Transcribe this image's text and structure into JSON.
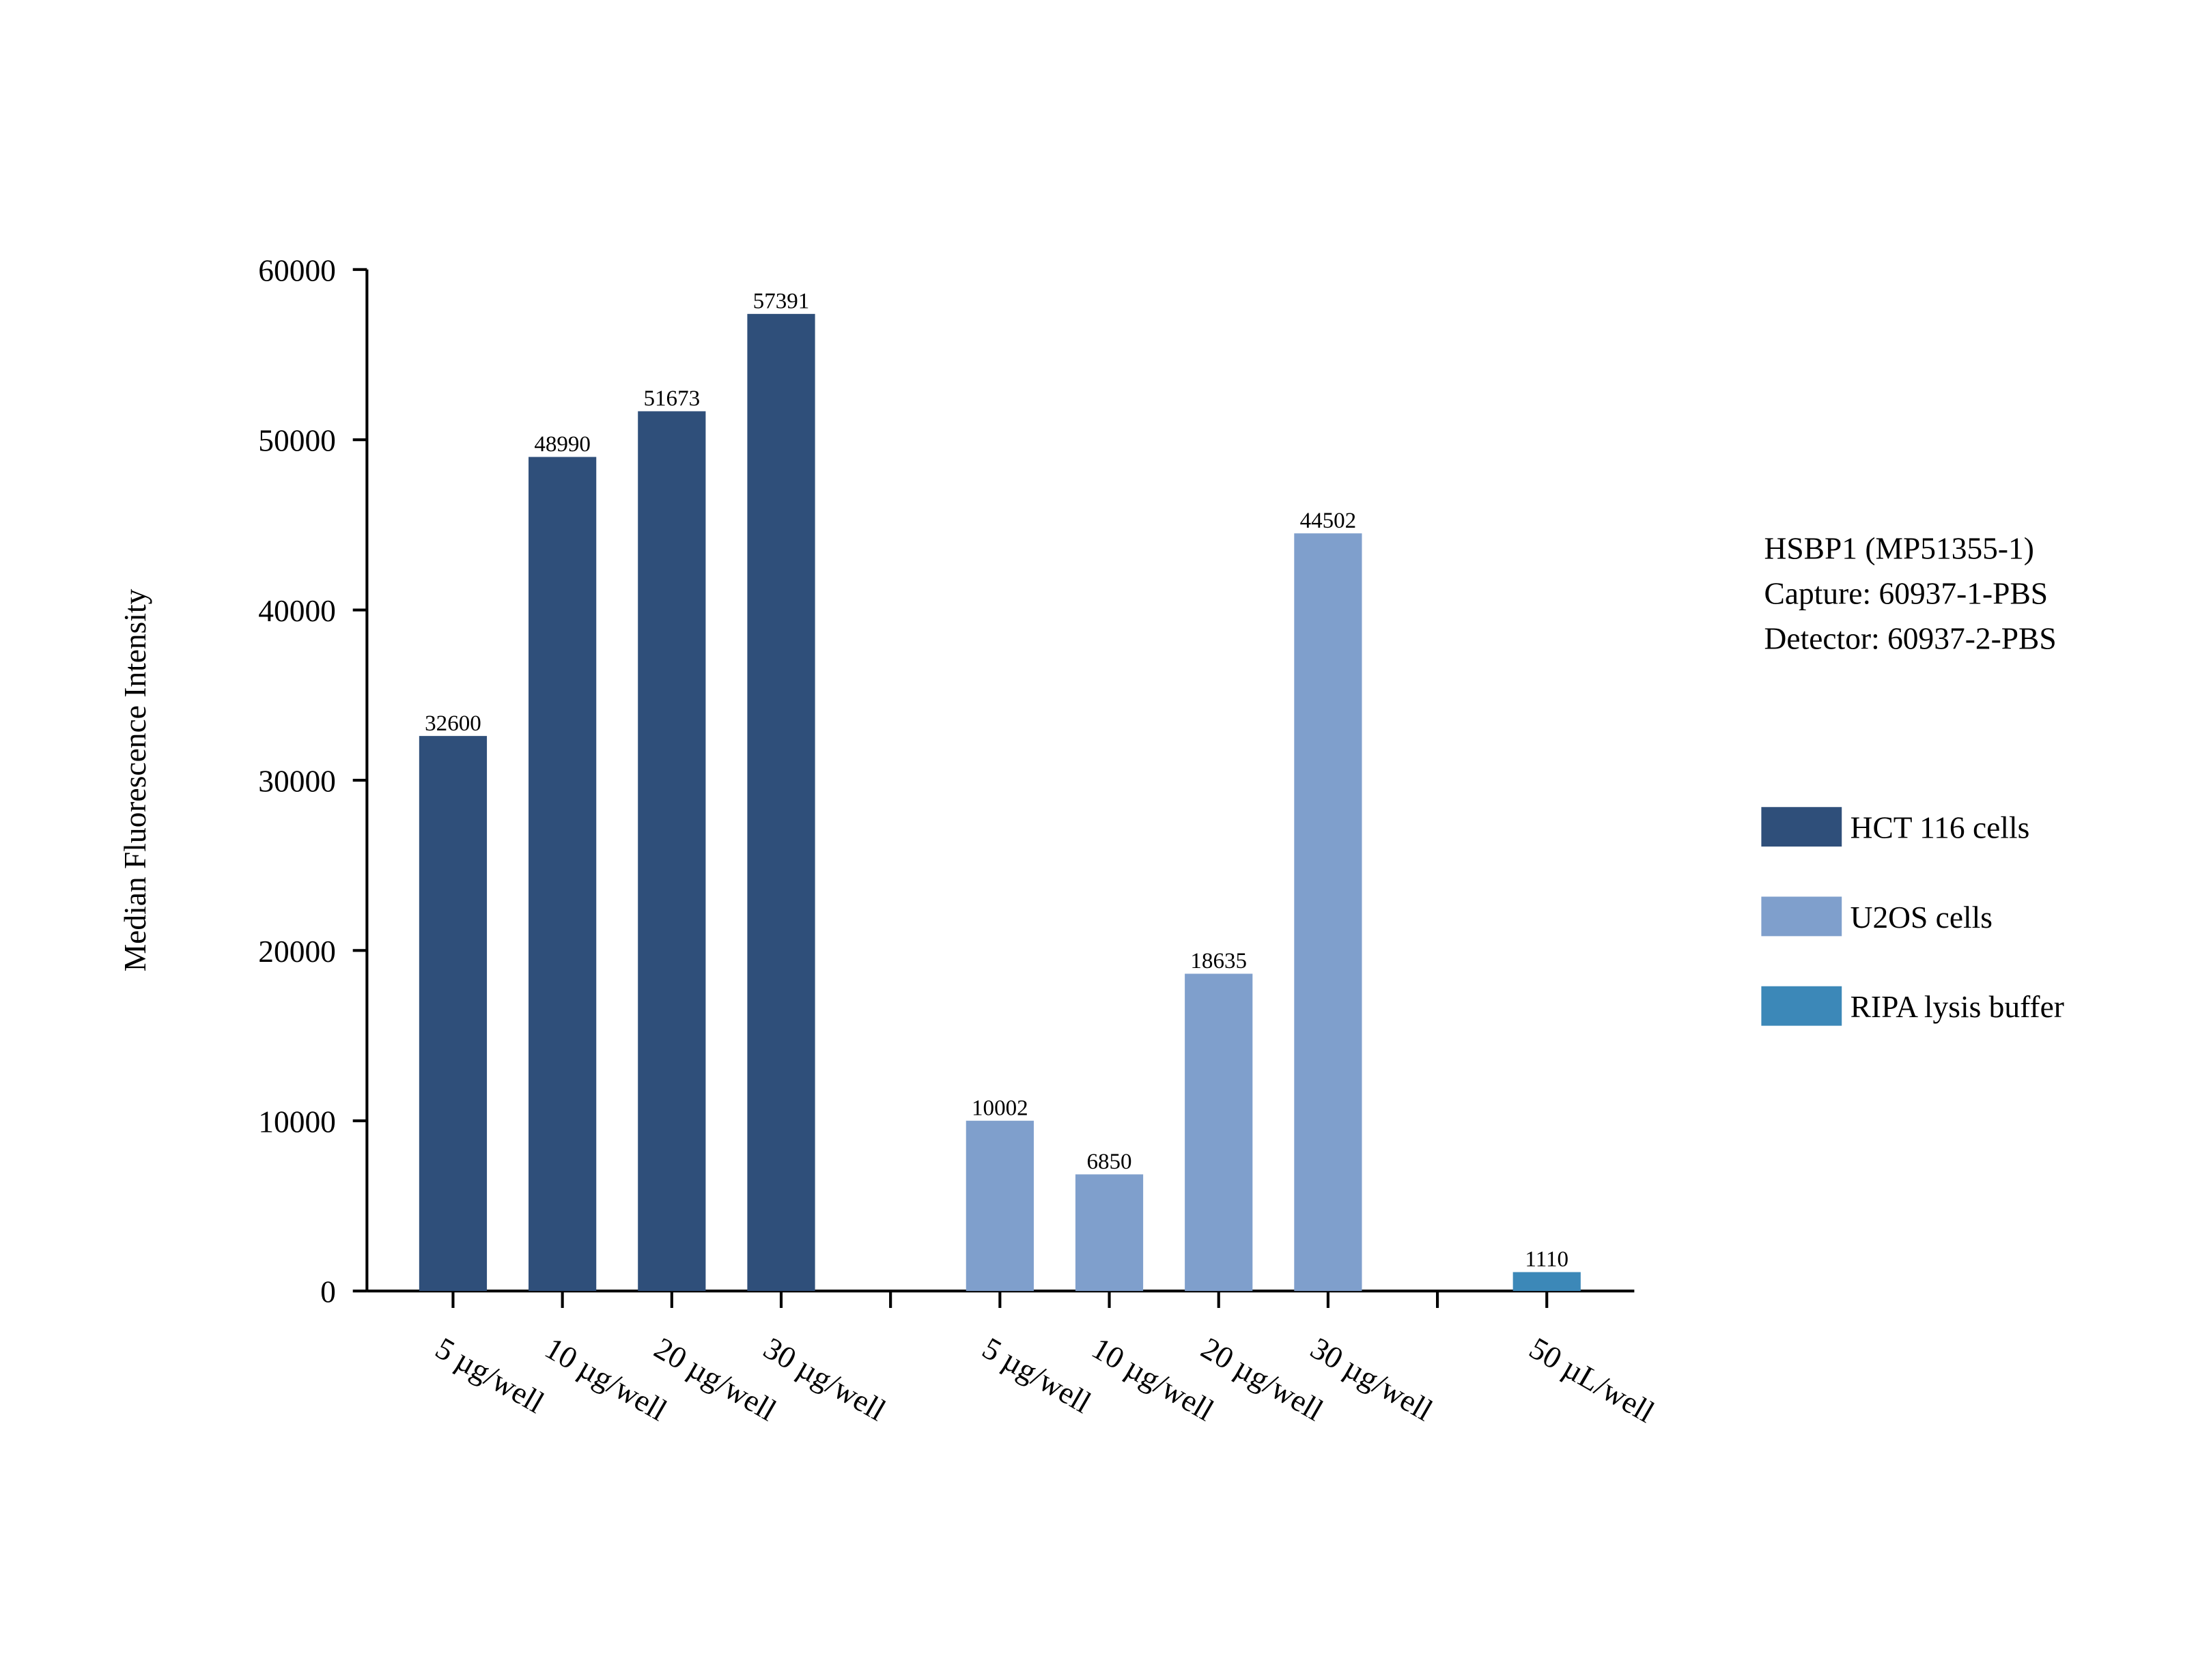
{
  "chart_data": {
    "type": "bar",
    "y_label": "Median Fluorescence Intensity",
    "annotations": [
      "HSBP1 (MP51355-1)",
      "Capture: 60937-1-PBS",
      "Detector: 60937-2-PBS"
    ],
    "categories": [
      "5 µg/well",
      "10 µg/well",
      "20 µg/well",
      "30 µg/well",
      null,
      "5 µg/well",
      "10 µg/well",
      "20 µg/well",
      "30 µg/well",
      null,
      "50 µL/well"
    ],
    "series": [
      {
        "name": "HCT 116 cells",
        "color": "#2f4f7a",
        "values": [
          32600,
          48990,
          51673,
          57391,
          null,
          null,
          null,
          null,
          null,
          null,
          null
        ]
      },
      {
        "name": "U2OS cells",
        "color": "#7f9fcc",
        "values": [
          null,
          null,
          null,
          null,
          null,
          10002,
          6850,
          18635,
          44502,
          null,
          null
        ]
      },
      {
        "name": "RIPA lysis buffer",
        "color": "#3c88b8",
        "values": [
          null,
          null,
          null,
          null,
          null,
          null,
          null,
          null,
          null,
          null,
          1110
        ]
      }
    ],
    "ylim": [
      0,
      60000
    ],
    "yticks": [
      0,
      10000,
      20000,
      30000,
      40000,
      50000,
      60000
    ],
    "legend": "right"
  }
}
